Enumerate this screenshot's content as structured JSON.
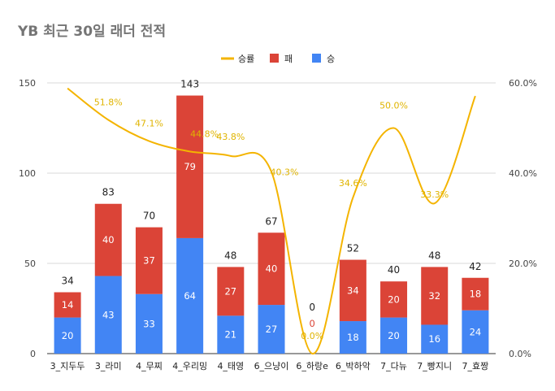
{
  "chart_data": {
    "type": "bar",
    "stacked": true,
    "title": "YB 최근 30일 래더 전적",
    "categories": [
      "3_지두두",
      "3_라미",
      "4_무찌",
      "4_우리밍",
      "4_태영",
      "6_으냥이",
      "6_하랑e",
      "6_박하악",
      "7_다뉴",
      "7_빵지니",
      "7_효짱"
    ],
    "series": [
      {
        "name": "승",
        "color": "#4285f4",
        "values": [
          20,
          43,
          33,
          64,
          21,
          27,
          0,
          18,
          20,
          16,
          24
        ]
      },
      {
        "name": "패",
        "color": "#db4437",
        "values": [
          14,
          40,
          37,
          79,
          27,
          40,
          0,
          34,
          20,
          32,
          18
        ]
      }
    ],
    "totals": [
      34,
      83,
      70,
      143,
      48,
      67,
      0,
      52,
      40,
      48,
      42
    ],
    "line": {
      "name": "승률",
      "color": "#f4b400",
      "axis": "right",
      "values": [
        58.8,
        51.8,
        47.1,
        44.8,
        43.8,
        40.3,
        0.0,
        34.6,
        50.0,
        33.3,
        57.1
      ],
      "labels": [
        "",
        "51.8%",
        "47.1%",
        "44.8%",
        "43.8%",
        "40.3%",
        "0.0%",
        "34.6%",
        "50.0%",
        "33.3%",
        ""
      ]
    },
    "y_left": {
      "min": 0,
      "max": 150,
      "ticks": [
        "0",
        "50",
        "100",
        "150"
      ]
    },
    "y_right": {
      "min": 0,
      "max": 60,
      "ticks": [
        "0.0%",
        "20.0%",
        "40.0%",
        "60.0%"
      ]
    },
    "grid": true,
    "legend_position": "top",
    "legend": [
      "승률",
      "패",
      "승"
    ]
  }
}
